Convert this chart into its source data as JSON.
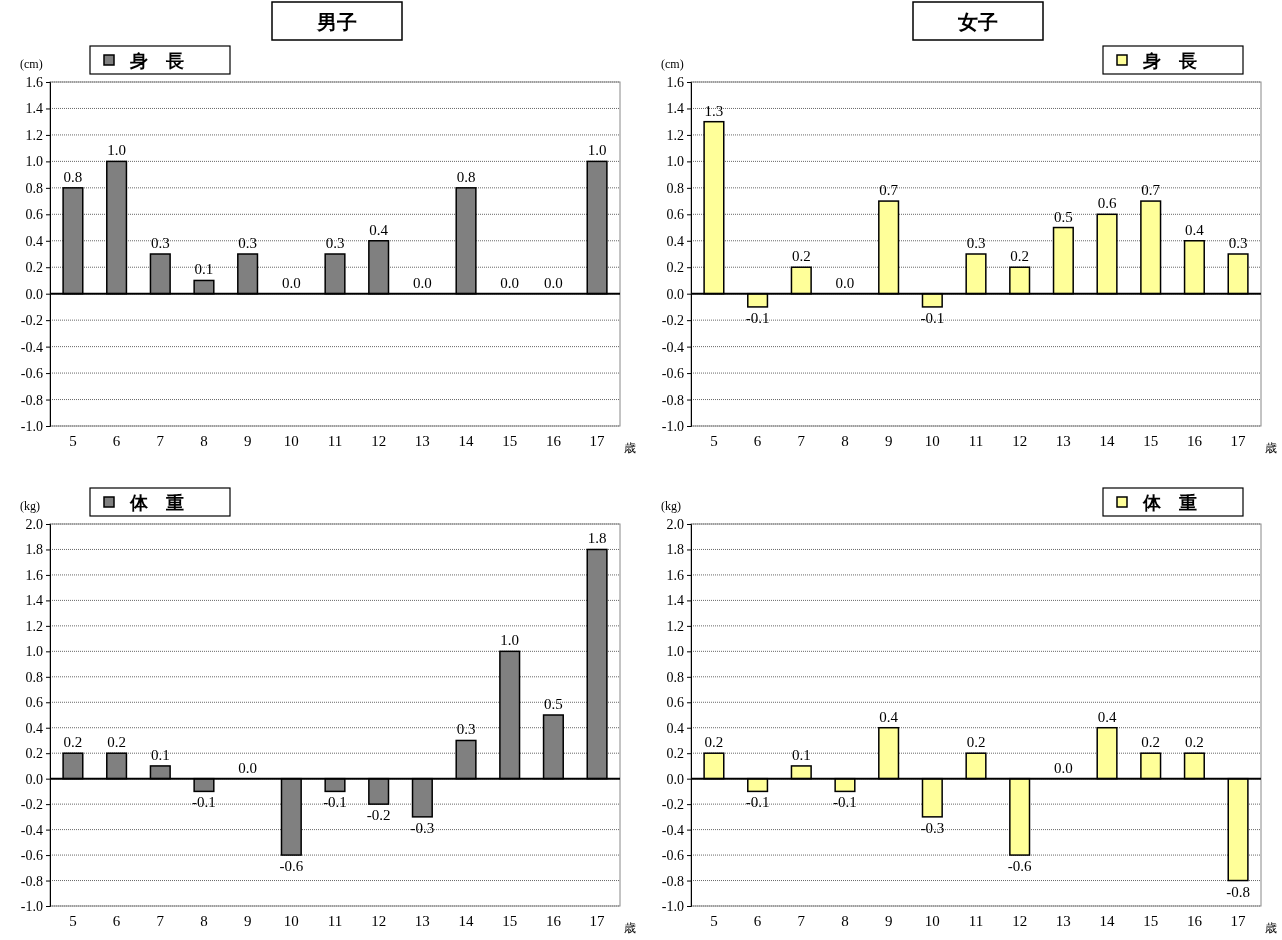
{
  "chart_data": [
    {
      "type": "bar",
      "title": "男子",
      "ylabel": "(cm)",
      "xlabel": "歳",
      "categories": [
        "5",
        "6",
        "7",
        "8",
        "9",
        "10",
        "11",
        "12",
        "13",
        "14",
        "15",
        "16",
        "17"
      ],
      "series": [
        {
          "name": "身　長",
          "color": "#808080",
          "values": [
            0.8,
            1.0,
            0.3,
            0.1,
            0.3,
            0.0,
            0.3,
            0.4,
            0.0,
            0.8,
            0.0,
            0.0,
            1.0
          ],
          "value_labels": [
            "0.8",
            "1.0",
            "0.3",
            "0.1",
            "0.3",
            "0.0",
            "0.3",
            "0.4",
            "0.0",
            "0.8",
            "0.0",
            "0.0",
            "1.0"
          ]
        }
      ],
      "ylim": [
        -1.0,
        1.6
      ],
      "yticks": [
        {
          "value": -1.0,
          "label": "-1.0"
        },
        {
          "value": -0.8,
          "label": "-0.8"
        },
        {
          "value": -0.6,
          "label": "-0.6"
        },
        {
          "value": -0.4,
          "label": "-0.4"
        },
        {
          "value": -0.2,
          "label": "-0.2"
        },
        {
          "value": 0,
          "label": "0.0"
        },
        {
          "value": 0.2,
          "label": "0.2"
        },
        {
          "value": 0.4,
          "label": "0.4"
        },
        {
          "value": 0.6,
          "label": "0.6"
        },
        {
          "value": 0.8,
          "label": "0.8"
        },
        {
          "value": 1.0,
          "label": "1.0"
        },
        {
          "value": 1.2,
          "label": "1.2"
        },
        {
          "value": 1.4,
          "label": "1.4"
        },
        {
          "value": 1.6,
          "label": "1.6"
        }
      ],
      "grid": "y",
      "legend": "top left"
    },
    {
      "type": "bar",
      "title": "女子",
      "ylabel": "(cm)",
      "xlabel": "歳",
      "categories": [
        "5",
        "6",
        "7",
        "8",
        "9",
        "10",
        "11",
        "12",
        "13",
        "14",
        "15",
        "16",
        "17"
      ],
      "series": [
        {
          "name": "身　長",
          "color": "#ffff99",
          "values": [
            1.3,
            -0.1,
            0.2,
            0.0,
            0.7,
            -0.1,
            0.3,
            0.2,
            0.5,
            0.6,
            0.7,
            0.4,
            0.3
          ],
          "value_labels": [
            "1.3",
            "-0.1",
            "0.2",
            "0.0",
            "0.7",
            "-0.1",
            "0.3",
            "0.2",
            "0.5",
            "0.6",
            "0.7",
            "0.4",
            "0.3"
          ]
        }
      ],
      "ylim": [
        -1.0,
        1.6
      ],
      "yticks": [
        {
          "value": -1.0,
          "label": "-1.0"
        },
        {
          "value": -0.8,
          "label": "-0.8"
        },
        {
          "value": -0.6,
          "label": "-0.6"
        },
        {
          "value": -0.4,
          "label": "-0.4"
        },
        {
          "value": -0.2,
          "label": "-0.2"
        },
        {
          "value": 0,
          "label": "0.0"
        },
        {
          "value": 0.2,
          "label": "0.2"
        },
        {
          "value": 0.4,
          "label": "0.4"
        },
        {
          "value": 0.6,
          "label": "0.6"
        },
        {
          "value": 0.8,
          "label": "0.8"
        },
        {
          "value": 1.0,
          "label": "1.0"
        },
        {
          "value": 1.2,
          "label": "1.2"
        },
        {
          "value": 1.4,
          "label": "1.4"
        },
        {
          "value": 1.6,
          "label": "1.6"
        }
      ],
      "grid": "y",
      "legend": "top right"
    },
    {
      "type": "bar",
      "ylabel": "(kg)",
      "xlabel": "歳",
      "categories": [
        "5",
        "6",
        "7",
        "8",
        "9",
        "10",
        "11",
        "12",
        "13",
        "14",
        "15",
        "16",
        "17"
      ],
      "series": [
        {
          "name": "体　重",
          "color": "#808080",
          "values": [
            0.2,
            0.2,
            0.1,
            -0.1,
            0.0,
            -0.6,
            -0.1,
            -0.2,
            -0.3,
            0.3,
            1.0,
            0.5,
            1.8
          ],
          "value_labels": [
            "0.2",
            "0.2",
            "0.1",
            "-0.1",
            "0.0",
            "-0.6",
            "-0.1",
            "-0.2",
            "-0.3",
            "0.3",
            "1.0",
            "0.5",
            "1.8"
          ]
        }
      ],
      "ylim": [
        -1.0,
        2.0
      ],
      "yticks": [
        {
          "value": -1.0,
          "label": "-1.0"
        },
        {
          "value": -0.8,
          "label": "-0.8"
        },
        {
          "value": -0.6,
          "label": "-0.6"
        },
        {
          "value": -0.4,
          "label": "-0.4"
        },
        {
          "value": -0.2,
          "label": "-0.2"
        },
        {
          "value": 0,
          "label": "0.0"
        },
        {
          "value": 0.2,
          "label": "0.2"
        },
        {
          "value": 0.4,
          "label": "0.4"
        },
        {
          "value": 0.6,
          "label": "0.6"
        },
        {
          "value": 0.8,
          "label": "0.8"
        },
        {
          "value": 1.0,
          "label": "1.0"
        },
        {
          "value": 1.2,
          "label": "1.2"
        },
        {
          "value": 1.4,
          "label": "1.4"
        },
        {
          "value": 1.6,
          "label": "1.6"
        },
        {
          "value": 1.8,
          "label": "1.8"
        },
        {
          "value": 2.0,
          "label": "2.0"
        }
      ],
      "grid": "y",
      "legend": "top left"
    },
    {
      "type": "bar",
      "ylabel": "(kg)",
      "xlabel": "歳",
      "categories": [
        "5",
        "6",
        "7",
        "8",
        "9",
        "10",
        "11",
        "12",
        "13",
        "14",
        "15",
        "16",
        "17"
      ],
      "series": [
        {
          "name": "体　重",
          "color": "#ffff99",
          "values": [
            0.2,
            -0.1,
            0.1,
            -0.1,
            0.4,
            -0.3,
            0.2,
            -0.6,
            0.0,
            0.4,
            0.2,
            0.2,
            -0.8
          ],
          "value_labels": [
            "0.2",
            "-0.1",
            "0.1",
            "-0.1",
            "0.4",
            "-0.3",
            "0.2",
            "-0.6",
            "0.0",
            "0.4",
            "0.2",
            "0.2",
            "-0.8"
          ]
        }
      ],
      "ylim": [
        -1.0,
        2.0
      ],
      "yticks": [
        {
          "value": -1.0,
          "label": "-1.0"
        },
        {
          "value": -0.8,
          "label": "-0.8"
        },
        {
          "value": -0.6,
          "label": "-0.6"
        },
        {
          "value": -0.4,
          "label": "-0.4"
        },
        {
          "value": -0.2,
          "label": "-0.2"
        },
        {
          "value": 0,
          "label": "0.0"
        },
        {
          "value": 0.2,
          "label": "0.2"
        },
        {
          "value": 0.4,
          "label": "0.4"
        },
        {
          "value": 0.6,
          "label": "0.6"
        },
        {
          "value": 0.8,
          "label": "0.8"
        },
        {
          "value": 1.0,
          "label": "1.0"
        },
        {
          "value": 1.2,
          "label": "1.2"
        },
        {
          "value": 1.4,
          "label": "1.4"
        },
        {
          "value": 1.6,
          "label": "1.6"
        },
        {
          "value": 1.8,
          "label": "1.8"
        },
        {
          "value": 2.0,
          "label": "2.0"
        }
      ],
      "grid": "y",
      "legend": "top right"
    }
  ]
}
